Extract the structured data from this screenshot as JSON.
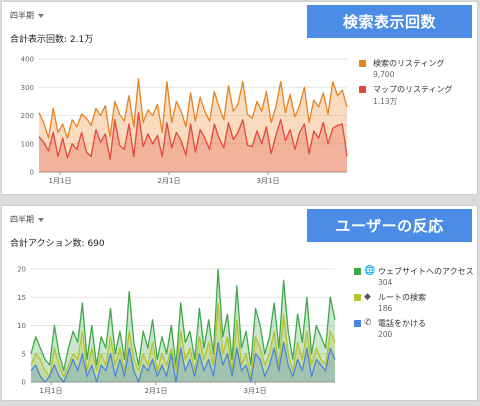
{
  "panels": [
    {
      "period": "四半期",
      "total": "合計表示回数: 2.1万",
      "banner": "検索表示回数",
      "y_ticks": [
        "400",
        "300",
        "200",
        "100",
        "0"
      ],
      "x_ticks": [
        "1月1日",
        "2月1日",
        "3月1日"
      ],
      "legend": [
        {
          "label": "検索のリスティング",
          "value": "9,700",
          "color": "#e8821e"
        },
        {
          "label": "マップのリスティング",
          "value": "1.13万",
          "color": "#e5483d"
        }
      ]
    },
    {
      "period": "四半期",
      "total": "合計アクション数: 690",
      "banner": "ユーザーの反応",
      "y_ticks": [
        "20",
        "15",
        "10",
        "5",
        "0"
      ],
      "x_ticks": [
        "1月1日",
        "2月1日",
        "3月1日"
      ],
      "legend": [
        {
          "label": "ウェブサイトへのアクセス",
          "value": "304",
          "color": "#3fa84a",
          "icon": "globe-icon"
        },
        {
          "label": "ルートの検索",
          "value": "186",
          "color": "#b8c22c",
          "icon": "directions-icon"
        },
        {
          "label": "電話をかける",
          "value": "200",
          "color": "#4a86d9",
          "icon": "phone-icon"
        }
      ]
    }
  ],
  "chart_data": [
    {
      "type": "area",
      "ylim": [
        0,
        400
      ],
      "x_tick_labels": [
        "1月1日",
        "2月1日",
        "3月1日"
      ],
      "series": [
        {
          "name": "検索のリスティング",
          "color": "#e8821e",
          "values": [
            210,
            175,
            120,
            225,
            140,
            170,
            120,
            185,
            160,
            205,
            190,
            165,
            225,
            200,
            235,
            125,
            250,
            205,
            180,
            270,
            160,
            330,
            175,
            220,
            200,
            240,
            140,
            320,
            175,
            250,
            215,
            160,
            280,
            180,
            265,
            215,
            180,
            285,
            230,
            185,
            305,
            215,
            240,
            320,
            205,
            190,
            250,
            215,
            285,
            175,
            230,
            320,
            210,
            275,
            195,
            235,
            300,
            175,
            255,
            230,
            280,
            205,
            320,
            270,
            290,
            230
          ]
        },
        {
          "name": "マップのリスティング",
          "color": "#e5483d",
          "values": [
            125,
            105,
            75,
            140,
            55,
            120,
            50,
            100,
            80,
            140,
            70,
            55,
            150,
            105,
            135,
            45,
            185,
            95,
            80,
            170,
            55,
            210,
            90,
            135,
            100,
            130,
            55,
            175,
            85,
            140,
            110,
            60,
            170,
            70,
            150,
            120,
            80,
            170,
            120,
            85,
            175,
            115,
            140,
            185,
            95,
            90,
            145,
            100,
            160,
            65,
            130,
            185,
            110,
            150,
            80,
            140,
            170,
            65,
            145,
            120,
            175,
            100,
            155,
            165,
            170,
            55
          ]
        }
      ]
    },
    {
      "type": "area",
      "ylim": [
        0,
        20
      ],
      "x_tick_labels": [
        "1月1日",
        "2月1日",
        "3月1日"
      ],
      "series": [
        {
          "name": "ウェブサイトへのアクセス",
          "color": "#3fa84a",
          "values": [
            5,
            8,
            6,
            4,
            3,
            10,
            5,
            2,
            6,
            9,
            7,
            14,
            4,
            10,
            3,
            8,
            6,
            13,
            5,
            9,
            4,
            16,
            7,
            3,
            9,
            6,
            11,
            4,
            8,
            5,
            10,
            3,
            14,
            7,
            9,
            4,
            13,
            6,
            11,
            5,
            20,
            8,
            12,
            4,
            17,
            6,
            9,
            3,
            13,
            10,
            5,
            8,
            14,
            6,
            18,
            9,
            4,
            12,
            7,
            15,
            5,
            10,
            8,
            6,
            15,
            11
          ]
        },
        {
          "name": "ルートの検索",
          "color": "#b8c22c",
          "values": [
            3,
            5,
            4,
            2,
            1,
            6,
            3,
            1,
            3,
            5,
            4,
            9,
            2,
            6,
            2,
            5,
            3,
            8,
            3,
            6,
            2,
            9,
            4,
            2,
            5,
            3,
            7,
            2,
            5,
            3,
            6,
            2,
            9,
            4,
            6,
            2,
            8,
            4,
            7,
            3,
            14,
            5,
            8,
            2,
            11,
            3,
            5,
            1,
            8,
            6,
            3,
            5,
            9,
            3,
            12,
            5,
            2,
            7,
            4,
            9,
            3,
            6,
            4,
            3,
            9,
            7
          ]
        },
        {
          "name": "電話をかける",
          "color": "#4a86d9",
          "values": [
            2,
            3,
            1,
            0,
            1,
            3,
            1,
            0,
            2,
            4,
            2,
            5,
            1,
            3,
            0,
            3,
            2,
            5,
            1,
            4,
            1,
            6,
            2,
            0,
            3,
            2,
            4,
            1,
            3,
            1,
            5,
            0,
            6,
            2,
            4,
            1,
            5,
            2,
            4,
            1,
            7,
            3,
            5,
            1,
            6,
            2,
            3,
            0,
            5,
            4,
            1,
            3,
            6,
            2,
            7,
            3,
            1,
            4,
            2,
            6,
            1,
            4,
            3,
            2,
            6,
            4
          ]
        }
      ]
    }
  ]
}
